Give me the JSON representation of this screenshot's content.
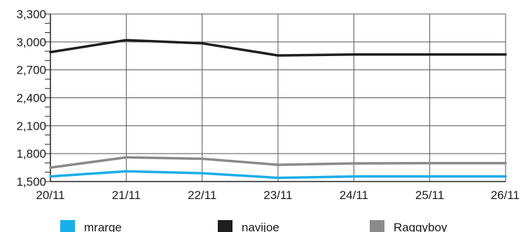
{
  "chart_data": {
    "type": "line",
    "title": "",
    "xlabel": "",
    "ylabel": "",
    "categories": [
      "20/11",
      "21/11",
      "22/11",
      "23/11",
      "24/11",
      "25/11",
      "26/11"
    ],
    "ylim": [
      1500,
      3300
    ],
    "yticks": [
      1500,
      1800,
      2100,
      2400,
      2700,
      3000,
      3300
    ],
    "ytick_labels": [
      "1,500",
      "1,800",
      "2,100",
      "2,400",
      "2,700",
      "3,000",
      "3,300"
    ],
    "minor_tick_step": 100,
    "grid": true,
    "legend_position": "bottom",
    "series": [
      {
        "name": "mrarge",
        "color": "#1aaee8",
        "values": [
          1555,
          1610,
          1590,
          1540,
          1555,
          1555,
          1555
        ]
      },
      {
        "name": "navijoe",
        "color": "#1e1e1e",
        "values": [
          2890,
          3020,
          2985,
          2855,
          2865,
          2865,
          2865
        ]
      },
      {
        "name": "Raggyboy",
        "color": "#8a8a8a",
        "values": [
          1650,
          1760,
          1745,
          1680,
          1695,
          1698,
          1698
        ]
      }
    ]
  }
}
